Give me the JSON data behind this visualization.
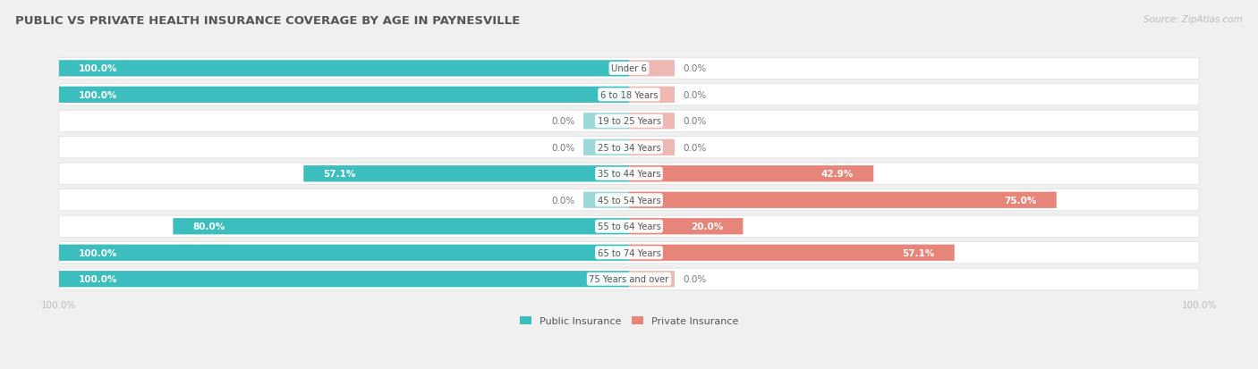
{
  "title": "PUBLIC VS PRIVATE HEALTH INSURANCE COVERAGE BY AGE IN PAYNESVILLE",
  "source": "Source: ZipAtlas.com",
  "categories": [
    "Under 6",
    "6 to 18 Years",
    "19 to 25 Years",
    "25 to 34 Years",
    "35 to 44 Years",
    "45 to 54 Years",
    "55 to 64 Years",
    "65 to 74 Years",
    "75 Years and over"
  ],
  "public_values": [
    100.0,
    100.0,
    0.0,
    0.0,
    57.1,
    0.0,
    80.0,
    100.0,
    100.0
  ],
  "private_values": [
    0.0,
    0.0,
    0.0,
    0.0,
    42.9,
    75.0,
    20.0,
    57.1,
    0.0
  ],
  "public_color": "#3dbebe",
  "private_color": "#e8857a",
  "public_color_light": "#9dd8d8",
  "private_color_light": "#f0b8b2",
  "bg_color": "#f0f0f0",
  "row_bg_color": "#ffffff",
  "row_border_color": "#dddddd",
  "title_color": "#555555",
  "label_color": "#555555",
  "value_color_outside": "#777777",
  "axis_label_color": "#bbbbbb",
  "max_val": 100.0,
  "stub_val": 8.0,
  "figsize": [
    14.06,
    4.14
  ],
  "dpi": 100
}
